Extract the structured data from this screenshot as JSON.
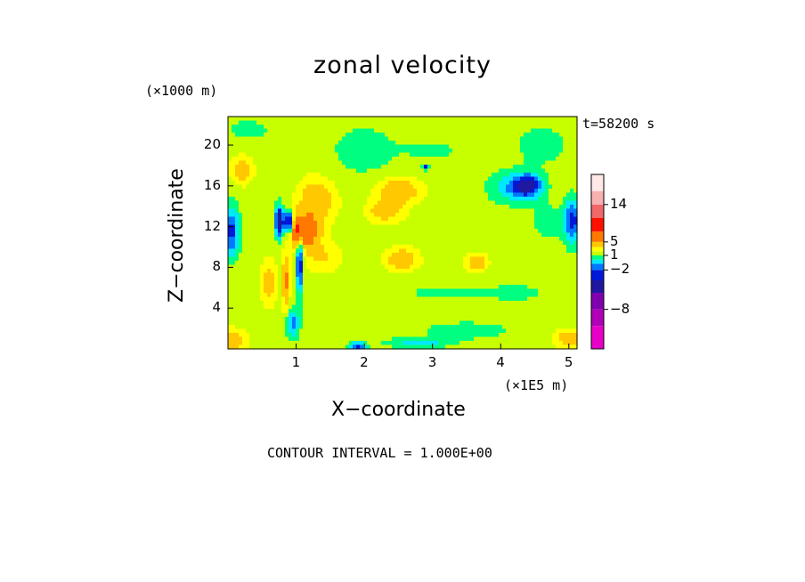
{
  "chart_data": {
    "type": "heatmap",
    "title": "zonal velocity",
    "xlabel": "X−coordinate",
    "ylabel": "Z−coordinate",
    "x_scale_label": "(×1E5 m)",
    "y_scale_label": "(×1000 m)",
    "time_label": "t=58200 s",
    "footer": "CONTOUR INTERVAL = 1.000E+00",
    "xlim": [
      0,
      5.12
    ],
    "ylim": [
      0,
      22.8
    ],
    "x_ticks": [
      "1",
      "2",
      "3",
      "4",
      "5"
    ],
    "x_tick_values": [
      1,
      2,
      3,
      4,
      5
    ],
    "y_ticks": [
      "4",
      "8",
      "12",
      "16",
      "20"
    ],
    "y_tick_values": [
      4,
      8,
      12,
      16,
      20
    ],
    "colorbar": {
      "levels": [
        -14,
        -11,
        -8,
        -5,
        -3,
        -2,
        -1,
        0,
        1,
        2,
        3,
        5,
        8,
        11,
        14,
        17
      ],
      "colors": [
        "#e800c8",
        "#b000b8",
        "#8000b0",
        "#2018a0",
        "#0018d8",
        "#0078ff",
        "#00e8ff",
        "#00ff80",
        "#c8ff00",
        "#ffff00",
        "#ffc800",
        "#ff7800",
        "#ff1000",
        "#f06868",
        "#f8b0b0",
        "#ffe8e8"
      ],
      "tick_labels": [
        "14",
        "5",
        "1",
        "−2",
        "−8"
      ],
      "tick_values": [
        14,
        5,
        1,
        -2,
        -8
      ]
    },
    "field_features": [
      {
        "x": 0.05,
        "z": 11.5,
        "sx": 0.12,
        "sz": 2.5,
        "v": -4
      },
      {
        "x": 0.2,
        "z": 17.5,
        "sx": 0.15,
        "sz": 1.2,
        "v": 2.5
      },
      {
        "x": 0.05,
        "z": 0.8,
        "sx": 0.2,
        "sz": 1.0,
        "v": 3
      },
      {
        "x": 0.75,
        "z": 12.5,
        "sx": 0.06,
        "sz": 1.5,
        "v": -6
      },
      {
        "x": 0.9,
        "z": 12.5,
        "sx": 0.08,
        "sz": 1.0,
        "v": -6
      },
      {
        "x": 1.0,
        "z": 11.8,
        "sx": 0.06,
        "sz": 1.5,
        "v": 5
      },
      {
        "x": 1.15,
        "z": 11.5,
        "sx": 0.18,
        "sz": 1.6,
        "v": 6
      },
      {
        "x": 1.05,
        "z": 8.5,
        "sx": 0.05,
        "sz": 3.0,
        "v": -5
      },
      {
        "x": 0.85,
        "z": 6.5,
        "sx": 0.05,
        "sz": 2.5,
        "v": 4
      },
      {
        "x": 0.6,
        "z": 6.5,
        "sx": 0.1,
        "sz": 2.0,
        "v": 2.5
      },
      {
        "x": 1.3,
        "z": 14.5,
        "sx": 0.25,
        "sz": 2.0,
        "v": 3
      },
      {
        "x": 1.4,
        "z": 9.0,
        "sx": 0.25,
        "sz": 1.5,
        "v": 1.5
      },
      {
        "x": 0.95,
        "z": 2.5,
        "sx": 0.1,
        "sz": 1.5,
        "v": -3
      },
      {
        "x": 1.9,
        "z": 0.2,
        "sx": 0.12,
        "sz": 0.5,
        "v": -4
      },
      {
        "x": 2.5,
        "z": 15.5,
        "sx": 0.3,
        "sz": 1.2,
        "v": 3
      },
      {
        "x": 2.3,
        "z": 13.5,
        "sx": 0.25,
        "sz": 1.0,
        "v": 2.5
      },
      {
        "x": 2.55,
        "z": 8.8,
        "sx": 0.22,
        "sz": 1.0,
        "v": 3
      },
      {
        "x": 3.65,
        "z": 8.5,
        "sx": 0.14,
        "sz": 0.8,
        "v": 3
      },
      {
        "x": 4.4,
        "z": 16.0,
        "sx": 0.22,
        "sz": 1.2,
        "v": -5
      },
      {
        "x": 4.1,
        "z": 15.8,
        "sx": 0.3,
        "sz": 1.6,
        "v": -2
      },
      {
        "x": 5.05,
        "z": 12.5,
        "sx": 0.12,
        "sz": 2.2,
        "v": -4
      },
      {
        "x": 4.7,
        "z": 12.5,
        "sx": 0.3,
        "sz": 2.0,
        "v": -1
      },
      {
        "x": 2.0,
        "z": 19.5,
        "sx": 0.5,
        "sz": 2.5,
        "v": -1.2
      },
      {
        "x": 3.0,
        "z": 19.5,
        "sx": 0.4,
        "sz": 1.0,
        "v": -1
      },
      {
        "x": 2.9,
        "z": 17.8,
        "sx": 0.05,
        "sz": 0.3,
        "v": -4
      },
      {
        "x": 3.2,
        "z": 5.5,
        "sx": 0.5,
        "sz": 0.6,
        "v": -1.5
      },
      {
        "x": 4.2,
        "z": 5.5,
        "sx": 0.4,
        "sz": 0.8,
        "v": -1.3
      },
      {
        "x": 3.5,
        "z": 1.8,
        "sx": 0.6,
        "sz": 0.8,
        "v": -1.5
      },
      {
        "x": 2.8,
        "z": 0.6,
        "sx": 0.5,
        "sz": 0.5,
        "v": -2
      },
      {
        "x": 5.0,
        "z": 1.0,
        "sx": 0.2,
        "sz": 0.8,
        "v": 2.5
      },
      {
        "x": 4.6,
        "z": 20.0,
        "sx": 0.4,
        "sz": 2.0,
        "v": -1.2
      },
      {
        "x": 0.3,
        "z": 21.5,
        "sx": 0.3,
        "sz": 1.0,
        "v": -1.2
      }
    ]
  }
}
